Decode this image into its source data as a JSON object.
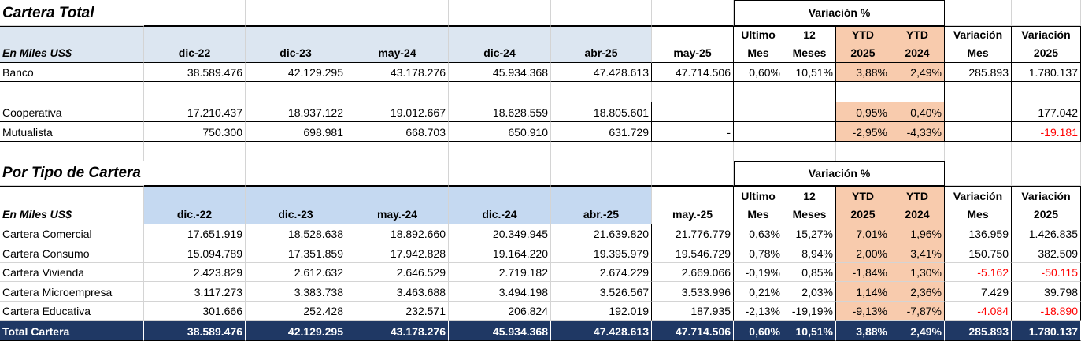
{
  "section1": {
    "title": "Cartera Total",
    "variation_header": "Variación %",
    "headers": [
      "En Miles US$",
      "dic-22",
      "dic-23",
      "may-24",
      "dic-24",
      "abr-25",
      "may-25",
      [
        "Ultimo",
        "Mes"
      ],
      [
        "12",
        "Meses"
      ],
      [
        "YTD",
        "2025"
      ],
      [
        "YTD",
        "2024"
      ],
      [
        "Variación",
        "Mes"
      ],
      [
        "Variación",
        "2025"
      ]
    ],
    "rows": [
      [
        "Banco",
        "38.589.476",
        "42.129.295",
        "43.178.276",
        "45.934.368",
        "47.428.613",
        "47.714.506",
        "0,60%",
        "10,51%",
        "3,88%",
        "2,49%",
        "285.893",
        "1.780.137"
      ],
      [
        "Cooperativa",
        "17.210.437",
        "18.937.122",
        "19.012.667",
        "18.628.559",
        "18.805.601",
        null,
        null,
        null,
        "0,95%",
        "0,40%",
        null,
        "177.042"
      ],
      [
        "Mutualista",
        "750.300",
        "698.981",
        "668.703",
        "650.910",
        "631.729",
        "-",
        null,
        null,
        "-2,95%",
        "-4,33%",
        null,
        "-19.181"
      ]
    ]
  },
  "section2": {
    "title": "Por Tipo de Cartera",
    "variation_header": "Variación %",
    "headers": [
      "En Miles US$",
      "dic.-22",
      "dic.-23",
      "may.-24",
      "dic.-24",
      "abr.-25",
      "may.-25",
      [
        "Ultimo",
        "Mes"
      ],
      [
        "12",
        "Meses"
      ],
      [
        "YTD",
        "2025"
      ],
      [
        "YTD",
        "2024"
      ],
      [
        "Variación",
        "Mes"
      ],
      [
        "Variación",
        "2025"
      ]
    ],
    "rows": [
      [
        "Cartera Comercial",
        "17.651.919",
        "18.528.638",
        "18.892.660",
        "20.349.945",
        "21.639.820",
        "21.776.779",
        "0,63%",
        "15,27%",
        "7,01%",
        "1,96%",
        "136.959",
        "1.426.835"
      ],
      [
        "Cartera Consumo",
        "15.094.789",
        "17.351.859",
        "17.942.828",
        "19.164.220",
        "19.395.979",
        "19.546.729",
        "0,78%",
        "8,94%",
        "2,00%",
        "3,41%",
        "150.750",
        "382.509"
      ],
      [
        "Cartera Vivienda",
        "2.423.829",
        "2.612.632",
        "2.646.529",
        "2.719.182",
        "2.674.229",
        "2.669.066",
        "-0,19%",
        "0,85%",
        "-1,84%",
        "1,30%",
        "-5.162",
        "-50.115"
      ],
      [
        "Cartera Microempresa",
        "3.117.273",
        "3.383.738",
        "3.463.688",
        "3.494.198",
        "3.526.567",
        "3.533.996",
        "0,21%",
        "2,03%",
        "1,14%",
        "2,36%",
        "7.429",
        "39.798"
      ],
      [
        "Cartera Educativa",
        "301.666",
        "252.428",
        "232.571",
        "206.824",
        "192.019",
        "187.935",
        "-2,13%",
        "-19,19%",
        "-9,13%",
        "-7,87%",
        "-4.084",
        "-18.890"
      ]
    ],
    "total_row": [
      "Total Cartera",
      "38.589.476",
      "42.129.295",
      "43.178.276",
      "45.934.368",
      "47.428.613",
      "47.714.506",
      "0,60%",
      "10,51%",
      "3,88%",
      "2,49%",
      "285.893",
      "1.780.137"
    ]
  }
}
